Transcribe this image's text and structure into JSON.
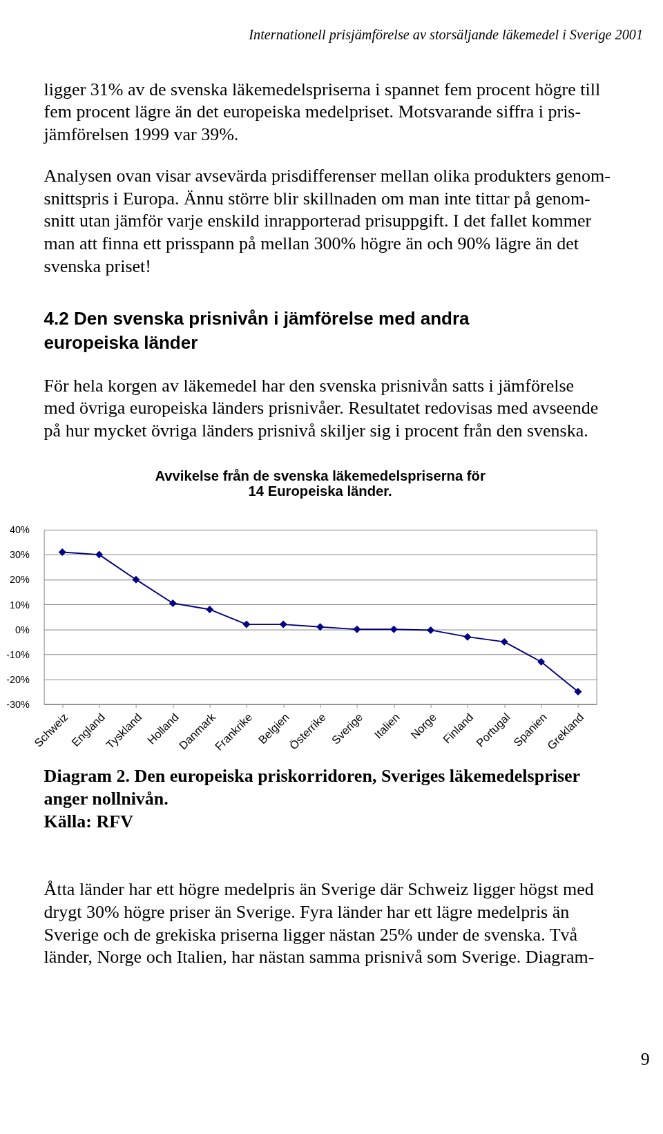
{
  "chart_data": {
    "type": "line",
    "title": "Avvikelse från de svenska läkemedelspriserna för\n14 Europeiska länder.",
    "categories": [
      "Schweiz",
      "England",
      "Tyskland",
      "Holland",
      "Danmark",
      "Frankrike",
      "Belgien",
      "Österrike",
      "Sverige",
      "Italien",
      "Norge",
      "Finland",
      "Portugal",
      "Spanien",
      "Grekland"
    ],
    "series": [
      {
        "color": "#000080",
        "values": [
          31,
          30,
          20,
          10.5,
          8,
          2,
          2,
          1,
          0,
          0,
          -0.3,
          -3,
          -5,
          -13,
          -25
        ]
      }
    ],
    "ylim": [
      -30,
      40
    ],
    "yticks": [
      {
        "value": -30,
        "label": "-30%"
      },
      {
        "value": -20,
        "label": "-20%"
      },
      {
        "value": -10,
        "label": "-10%"
      },
      {
        "value": 0,
        "label": "0%"
      },
      {
        "value": 10,
        "label": "10%"
      },
      {
        "value": 20,
        "label": "20%"
      },
      {
        "value": 30,
        "label": "30%"
      },
      {
        "value": 40,
        "label": "40%"
      }
    ],
    "grid": "y",
    "marker": "diamond",
    "line_style": "solid",
    "annotations": [
      "Internationell prisjämförelse av storsäljande läkemedel i Sverige 2001",
      "ligger 31% av de svenska läkemedelspriserna i spannet fem procent högre till\nfem procent lägre än det europeiska medelpriset. Motsvarande siffra i pris-\njämförelsen 1999 var 39%.",
      "Analysen ovan visar avsevärda prisdifferenser mellan olika produkters genom-\nsnittspris i Europa. Ännu större blir skillnaden om man inte tittar på genom-\nsnitt utan jämför varje enskild inrapporterad prisuppgift. I det fallet kommer\nman att finna ett prisspann på mellan 300% högre än och 90% lägre än det\nsvenska priset!",
      "4.2          Den svenska prisnivån i jämförelse med andra\n               europeiska länder",
      "För hela korgen av läkemedel har den svenska prisnivån satts i jämförelse\nmed övriga europeiska länders prisnivåer. Resultatet redovisas med avseende\npå hur mycket övriga länders prisnivå skiljer sig i procent från den svenska.",
      "Diagram 2. Den europeiska priskorridoren, Sveriges läkemedelspriser\nanger nollnivån.\nKälla: RFV",
      "Åtta länder har ett högre medelpris än Sverige där Schweiz ligger högst med\ndrygt 30% högre priser än Sverige. Fyra länder har ett lägre medelpris än\nSverige och de grekiska priserna ligger nästan 25% under de svenska. Två\nländer, Norge och Italien, har nästan samma prisnivå som Sverige. Diagram-",
      "9"
    ]
  }
}
